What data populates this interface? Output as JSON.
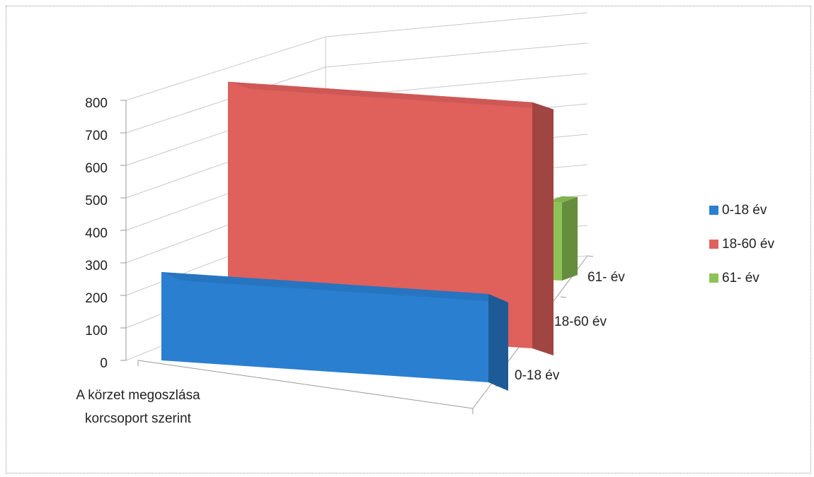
{
  "chart_data": {
    "type": "bar",
    "three_d": true,
    "title": "",
    "categories": [
      "A körzet megoszlása korcsoport szerint"
    ],
    "category_label_lines": [
      "A körzet megoszlása",
      "korcsoport szerint"
    ],
    "series": [
      {
        "name": "0-18 év",
        "values": [
          250
        ],
        "color": "#2a7fd1"
      },
      {
        "name": "18-60 év",
        "values": [
          810
        ],
        "color": "#e0605c"
      },
      {
        "name": "61- év",
        "values": [
          460
        ],
        "color": "#8dc356"
      }
    ],
    "depth_labels": [
      "61- év",
      "18-60 év",
      "0-18 év"
    ],
    "y_ticks": [
      "800",
      "700",
      "600",
      "500",
      "400",
      "300",
      "200",
      "100",
      "0"
    ],
    "ylim": [
      0,
      800
    ],
    "grid": true,
    "legend_position": "right"
  }
}
